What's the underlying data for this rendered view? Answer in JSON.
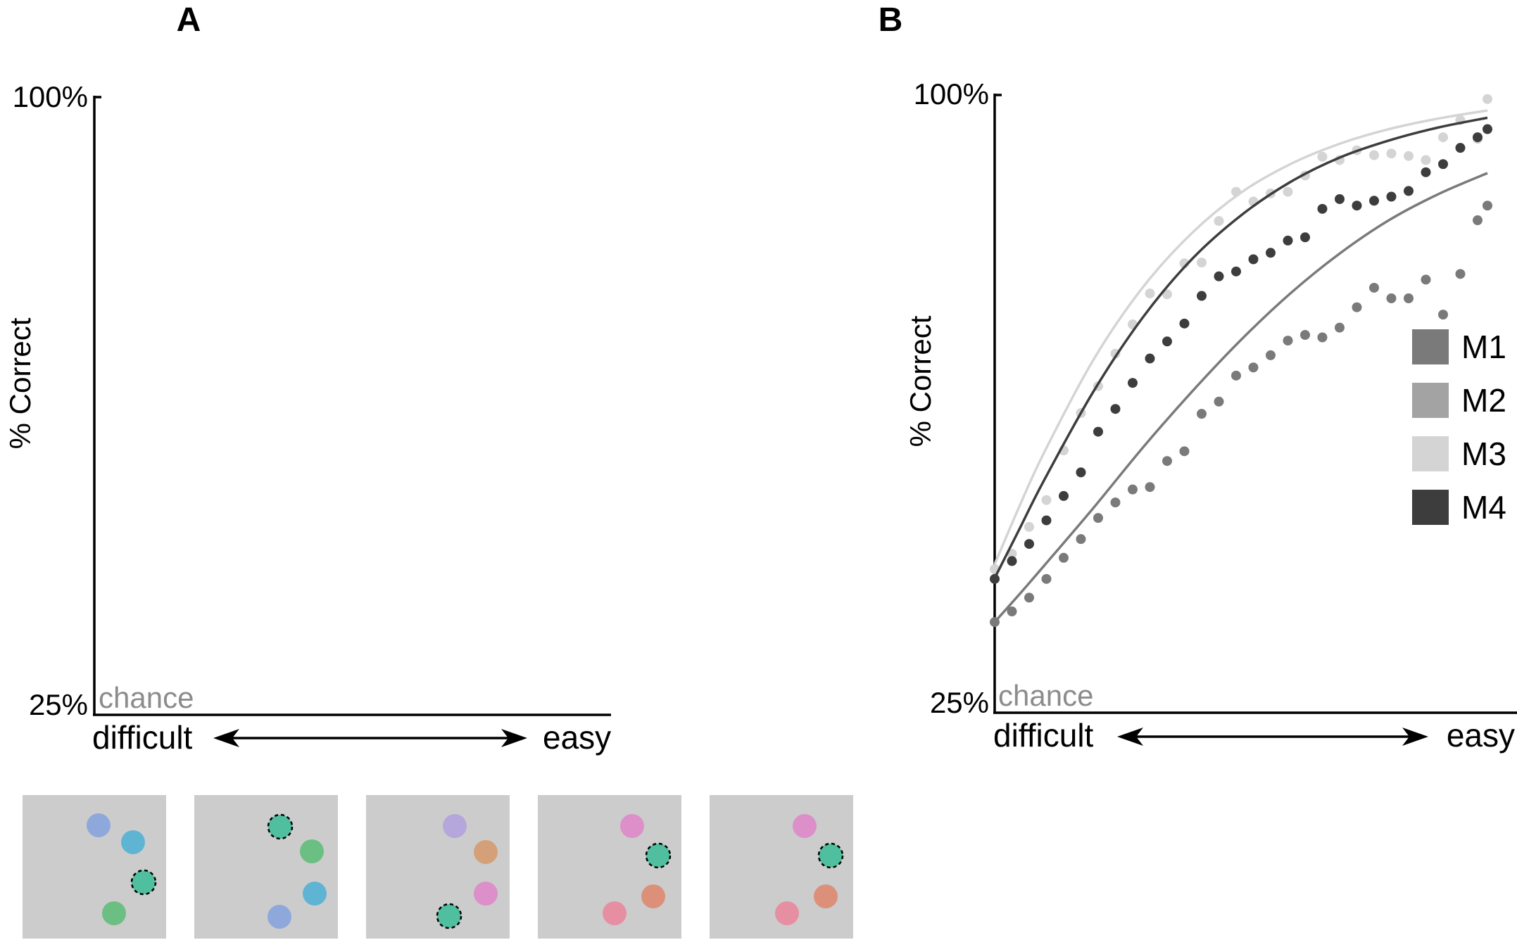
{
  "panels": {
    "a": {
      "letter": "A"
    },
    "b": {
      "letter": "B"
    }
  },
  "labels": {
    "y_top": "100%",
    "y_bottom": "25%",
    "ylabel": "% Correct",
    "chance": "chance",
    "x_left": "difficult",
    "x_right": "easy"
  },
  "colors": {
    "M1": "#7a7a7a",
    "M2": "#a3a3a3",
    "M3": "#d4d4d4",
    "M4": "#3d3d3d",
    "stimulus_bg": "#cccccc",
    "target": "#4fbf9f"
  },
  "stimuli": [
    {
      "dots": [
        {
          "color": "#8fa8dc"
        },
        {
          "color": "#5fb4d4"
        },
        {
          "color": "#4fbf9f",
          "target": true
        },
        {
          "color": "#6bbf83"
        }
      ]
    },
    {
      "dots": [
        {
          "color": "#4fbf9f",
          "target": true
        },
        {
          "color": "#6bbf83"
        },
        {
          "color": "#5fb4d4"
        },
        {
          "color": "#8fa8dc"
        }
      ]
    },
    {
      "dots": [
        {
          "color": "#b5a6dc"
        },
        {
          "color": "#d4a07a"
        },
        {
          "color": "#dc8fc8"
        },
        {
          "color": "#4fbf9f",
          "target": true
        }
      ]
    },
    {
      "dots": [
        {
          "color": "#dc8fc8"
        },
        {
          "color": "#4fbf9f",
          "target": true
        },
        {
          "color": "#dc907a"
        },
        {
          "color": "#e68fa2"
        }
      ]
    },
    {
      "dots": [
        {
          "color": "#dc8fc8"
        },
        {
          "color": "#4fbf9f",
          "target": true
        },
        {
          "color": "#dc907a"
        },
        {
          "color": "#e68fa2"
        }
      ]
    }
  ],
  "chart_data": [
    {
      "type": "line",
      "panel": "A",
      "ylabel": "% Correct",
      "ylim": [
        25,
        100
      ],
      "yticks": [
        "25%",
        "100%"
      ],
      "x_axis": {
        "left": "difficult",
        "right": "easy"
      },
      "annotations": [
        "chance"
      ],
      "series": []
    },
    {
      "type": "scatter",
      "panel": "B",
      "ylabel": "% Correct",
      "ylim": [
        25,
        100
      ],
      "xlim": [
        0,
        1
      ],
      "yticks": [
        "25%",
        "100%"
      ],
      "x_axis": {
        "left": "difficult",
        "right": "easy"
      },
      "annotations": [
        "chance"
      ],
      "legend": {
        "position": "right",
        "entries": [
          "M1",
          "M2",
          "M3",
          "M4"
        ]
      },
      "series": [
        {
          "name": "M3",
          "color": "#d4d4d4",
          "fit": [
            [
              0.0,
              42.3
            ],
            [
              0.05,
              49.4
            ],
            [
              0.1,
              56.0
            ],
            [
              0.2,
              67.4
            ],
            [
              0.3,
              76.3
            ],
            [
              0.4,
              83.0
            ],
            [
              0.5,
              88.0
            ],
            [
              0.6,
              91.5
            ],
            [
              0.7,
              94.0
            ],
            [
              0.8,
              95.8
            ],
            [
              0.9,
              97.1
            ],
            [
              1.0,
              98.1
            ]
          ],
          "points": [
            [
              0.0,
              41.7
            ],
            [
              0.035,
              43.6
            ],
            [
              0.07,
              46.9
            ],
            [
              0.105,
              50.2
            ],
            [
              0.14,
              56.3
            ],
            [
              0.175,
              60.9
            ],
            [
              0.21,
              64.2
            ],
            [
              0.245,
              68.2
            ],
            [
              0.28,
              71.8
            ],
            [
              0.315,
              75.6
            ],
            [
              0.35,
              75.5
            ],
            [
              0.385,
              79.3
            ],
            [
              0.42,
              79.4
            ],
            [
              0.455,
              84.5
            ],
            [
              0.49,
              88.1
            ],
            [
              0.525,
              86.9
            ],
            [
              0.56,
              87.9
            ],
            [
              0.595,
              88.1
            ],
            [
              0.63,
              90.1
            ],
            [
              0.665,
              92.4
            ],
            [
              0.7,
              92.0
            ],
            [
              0.735,
              93.2
            ],
            [
              0.77,
              92.6
            ],
            [
              0.805,
              92.8
            ],
            [
              0.84,
              92.5
            ],
            [
              0.875,
              92.0
            ],
            [
              0.91,
              94.8
            ],
            [
              0.945,
              96.9
            ],
            [
              0.98,
              94.6
            ],
            [
              1.0,
              99.5
            ]
          ]
        },
        {
          "name": "M4",
          "color": "#3d3d3d",
          "fit": [
            [
              0.0,
              40.6
            ],
            [
              0.05,
              46.6
            ],
            [
              0.1,
              52.6
            ],
            [
              0.2,
              63.5
            ],
            [
              0.3,
              72.6
            ],
            [
              0.4,
              79.8
            ],
            [
              0.5,
              85.2
            ],
            [
              0.6,
              89.3
            ],
            [
              0.7,
              92.3
            ],
            [
              0.8,
              94.4
            ],
            [
              0.9,
              96.0
            ],
            [
              1.0,
              97.2
            ]
          ],
          "points": [
            [
              0.0,
              40.5
            ],
            [
              0.035,
              42.7
            ],
            [
              0.07,
              44.8
            ],
            [
              0.105,
              47.7
            ],
            [
              0.14,
              50.7
            ],
            [
              0.175,
              53.6
            ],
            [
              0.21,
              58.6
            ],
            [
              0.245,
              61.4
            ],
            [
              0.28,
              64.6
            ],
            [
              0.315,
              67.6
            ],
            [
              0.35,
              69.7
            ],
            [
              0.385,
              71.9
            ],
            [
              0.42,
              75.3
            ],
            [
              0.455,
              77.7
            ],
            [
              0.49,
              78.3
            ],
            [
              0.525,
              79.8
            ],
            [
              0.56,
              80.6
            ],
            [
              0.595,
              82.1
            ],
            [
              0.63,
              82.5
            ],
            [
              0.665,
              86.0
            ],
            [
              0.7,
              87.2
            ],
            [
              0.735,
              86.4
            ],
            [
              0.77,
              87.0
            ],
            [
              0.805,
              87.5
            ],
            [
              0.84,
              88.2
            ],
            [
              0.875,
              90.5
            ],
            [
              0.91,
              91.5
            ],
            [
              0.945,
              93.5
            ],
            [
              0.98,
              94.8
            ],
            [
              1.0,
              95.8
            ]
          ]
        },
        {
          "name": "M1",
          "color": "#7a7a7a",
          "fit": [
            [
              0.0,
              35.2
            ],
            [
              0.05,
              38.6
            ],
            [
              0.1,
              42.1
            ],
            [
              0.2,
              49.2
            ],
            [
              0.3,
              56.6
            ],
            [
              0.4,
              63.5
            ],
            [
              0.5,
              69.9
            ],
            [
              0.6,
              75.6
            ],
            [
              0.7,
              80.5
            ],
            [
              0.8,
              84.6
            ],
            [
              0.9,
              87.8
            ],
            [
              1.0,
              90.4
            ]
          ],
          "points": [
            [
              0.0,
              35.2
            ],
            [
              0.035,
              36.5
            ],
            [
              0.07,
              38.2
            ],
            [
              0.105,
              40.5
            ],
            [
              0.14,
              43.1
            ],
            [
              0.175,
              45.4
            ],
            [
              0.21,
              48.0
            ],
            [
              0.245,
              49.9
            ],
            [
              0.28,
              51.5
            ],
            [
              0.315,
              51.8
            ],
            [
              0.35,
              55.0
            ],
            [
              0.385,
              56.2
            ],
            [
              0.42,
              60.8
            ],
            [
              0.455,
              62.3
            ],
            [
              0.49,
              65.5
            ],
            [
              0.525,
              66.5
            ],
            [
              0.56,
              68.0
            ],
            [
              0.595,
              69.8
            ],
            [
              0.63,
              70.5
            ],
            [
              0.665,
              70.2
            ],
            [
              0.7,
              71.4
            ],
            [
              0.735,
              73.9
            ],
            [
              0.77,
              76.3
            ],
            [
              0.805,
              75.0
            ],
            [
              0.84,
              75.0
            ],
            [
              0.875,
              77.3
            ],
            [
              0.91,
              73.0
            ],
            [
              0.945,
              78.0
            ],
            [
              0.98,
              84.6
            ],
            [
              1.0,
              86.4
            ]
          ]
        }
      ]
    }
  ]
}
